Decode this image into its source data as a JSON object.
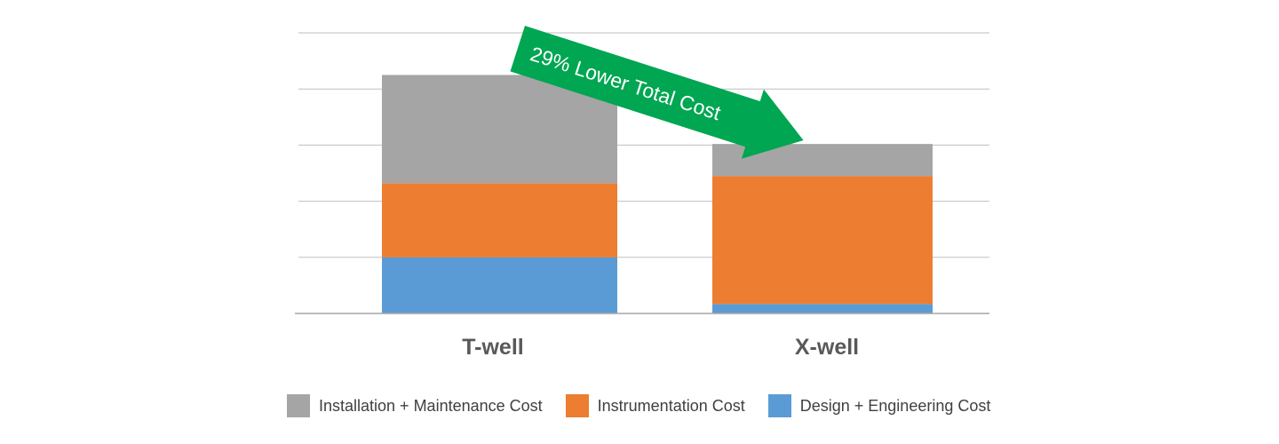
{
  "chart_data": {
    "type": "bar",
    "stacked": true,
    "categories": [
      "T-well",
      "X-well"
    ],
    "series": [
      {
        "name": "Design + Engineering Cost",
        "values": [
          1.0,
          0.17
        ],
        "color": "#5b9bd5"
      },
      {
        "name": "Instrumentation Cost",
        "values": [
          1.32,
          2.28
        ],
        "color": "#ed7d31"
      },
      {
        "name": "Installation + Maintenance Cost",
        "values": [
          1.93,
          0.57
        ],
        "color": "#a5a5a5"
      }
    ],
    "stack_order_bottom_to_top": [
      "Design + Engineering Cost",
      "Instrumentation Cost",
      "Installation + Maintenance Cost"
    ],
    "ylim": [
      0,
      5
    ],
    "grid": true,
    "y_tick_labels_visible": false,
    "legend_position": "bottom",
    "annotation": {
      "text": "29% Lower Total Cost",
      "style": "green arrow pointing from T-well to X-well",
      "color": "#00a651"
    },
    "colors": {
      "gridline": "#bfbfbf",
      "axis": "#a6a6a6",
      "category_label": "#595959"
    }
  },
  "legend": [
    {
      "label": "Installation + Maintenance Cost",
      "color": "#a5a5a5"
    },
    {
      "label": "Instrumentation Cost",
      "color": "#ed7d31"
    },
    {
      "label": "Design + Engineering Cost",
      "color": "#5b9bd5"
    }
  ]
}
